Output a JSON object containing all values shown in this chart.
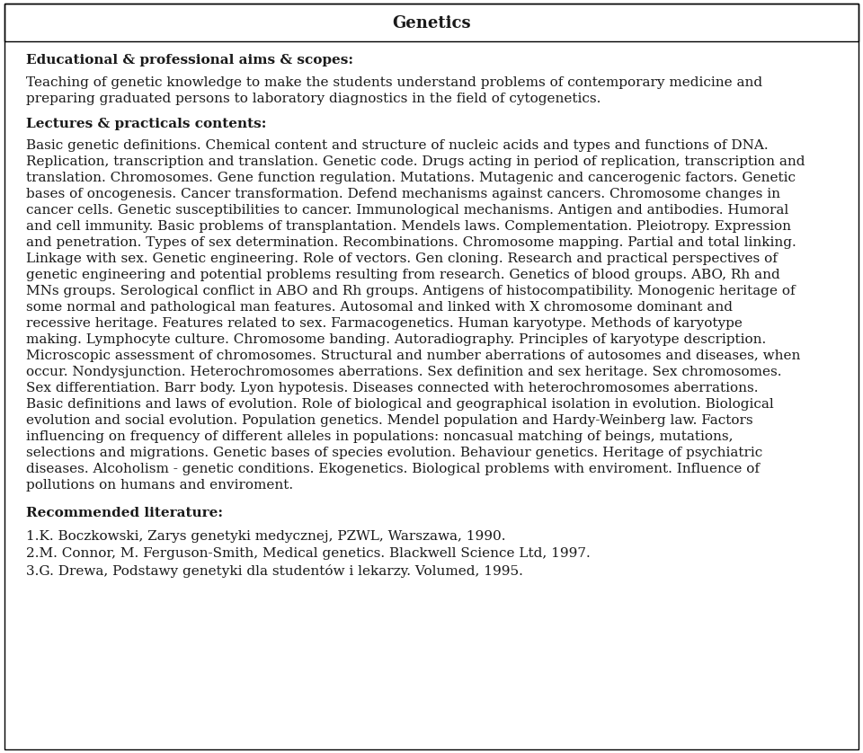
{
  "title": "Genetics",
  "background_color": "#ffffff",
  "text_color": "#1a1a1a",
  "border_color": "#000000",
  "section1_bold": "Educational & professional aims & scopes:",
  "section1_body": "Teaching of genetic knowledge to make the students understand problems of contemporary medicine and\npreparing graduated persons to laboratory diagnostics in the field of cytogenetics.",
  "section2_bold": "Lectures & practicals contents:",
  "section2_body": "Basic genetic definitions. Chemical content and structure of nucleic acids and types and functions of DNA.\nReplication, transcription and translation. Genetic code. Drugs acting in period of replication, transcription and\ntranslation. Chromosomes. Gene function regulation. Mutations. Mutagenic and cancerogenic factors. Genetic\nbases of oncogenesis. Cancer transformation. Defend mechanisms against cancers. Chromosome changes in\ncancer cells. Genetic susceptibilities to cancer. Immunological mechanisms. Antigen and antibodies. Humoral\nand cell immunity. Basic problems of transplantation. Mendels laws. Complementation. Pleiotropy. Expression\nand penetration. Types of sex determination. Recombinations. Chromosome mapping. Partial and total linking.\nLinkage with sex. Genetic engineering. Role of vectors. Gen cloning. Research and practical perspectives of\ngenetic engineering and potential problems resulting from research. Genetics of blood groups. ABO, Rh and\nMNs groups. Serological conflict in ABO and Rh groups. Antigens of histocompatibility. Monogenic heritage of\nsome normal and pathological man features. Autosomal and linked with X chromosome dominant and\nrecessive heritage. Features related to sex. Farmacogenetics. Human karyotype. Methods of karyotype\nmaking. Lymphocyte culture. Chromosome banding. Autoradiography. Principles of karyotype description.\nMicroscopic assessment of chromosomes. Structural and number aberrations of autosomes and diseases, when\noccur. Nondysjunction. Heterochromosomes aberrations. Sex definition and sex heritage. Sex chromosomes.\nSex differentiation. Barr body. Lyon hypotesis. Diseases connected with heterochromosomes aberrations.\nBasic definitions and laws of evolution. Role of biological and geographical isolation in evolution. Biological\nevolution and social evolution. Population genetics. Mendel population and Hardy-Weinberg law. Factors\ninfluencing on frequency of different alleles in populations: noncasual matching of beings, mutations,\nselections and migrations. Genetic bases of species evolution. Behaviour genetics. Heritage of psychiatric\ndiseases. Alcoholism - genetic conditions. Ekogenetics. Biological problems with enviroment. Influence of\npollutions on humans and enviroment.",
  "section3_bold": "Recommended literature:",
  "references": [
    "1.K. Boczkowski, Zarys genetyki medycznej, PZWL, Warszawa, 1990.",
    "2.M. Connor, M. Ferguson-Smith, Medical genetics. Blackwell Science Ltd, 1997.",
    "3.G. Drewa, Podstawy genetyki dla studentów i lekarzy. Volumed, 1995."
  ],
  "title_fontsize": 13,
  "bold_fontsize": 11,
  "body_fontsize": 11
}
